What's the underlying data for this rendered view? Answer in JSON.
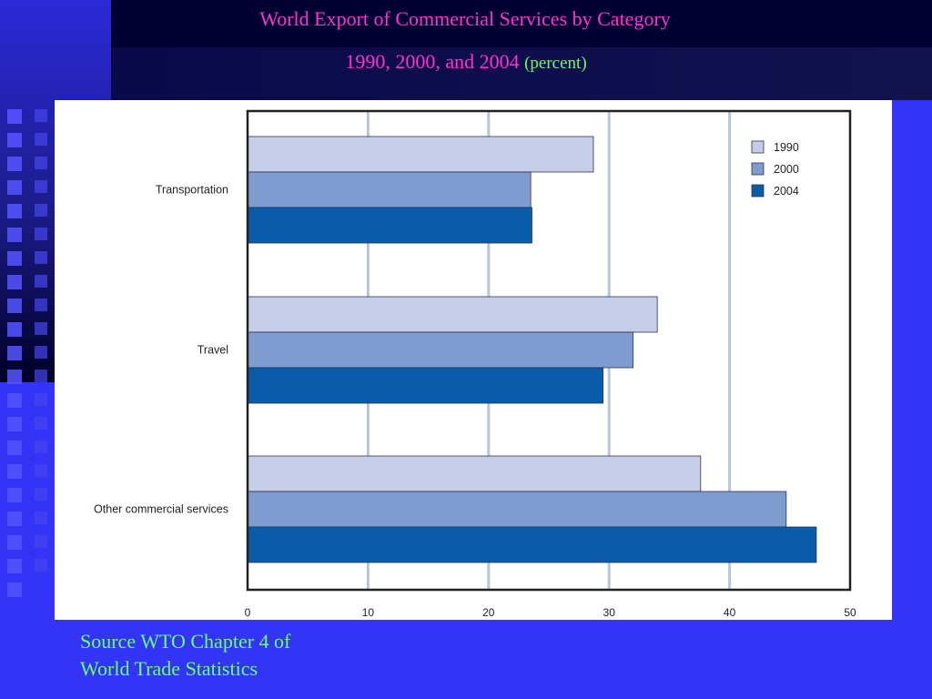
{
  "slide": {
    "title_line1": "World Export of Commercial Services by Category",
    "title_line2": "1990, 2000, and 2004",
    "title_unit": "(percent)",
    "source_line1": "Source WTO Chapter 4 of",
    "source_line2": "World Trade Statistics"
  },
  "colors": {
    "1990": "#c5cde9",
    "2000": "#7e9ccf",
    "2004": "#0a5ba8",
    "grid": "#b8c3dc"
  },
  "chart_data": {
    "type": "bar",
    "orientation": "horizontal",
    "categories": [
      "Transportation",
      "Travel",
      "Other commercial services"
    ],
    "series": [
      {
        "name": "1990",
        "values": [
          28.7,
          34.0,
          37.6
        ]
      },
      {
        "name": "2000",
        "values": [
          23.5,
          32.0,
          44.7
        ]
      },
      {
        "name": "2004",
        "values": [
          23.6,
          29.5,
          47.2
        ]
      }
    ],
    "xlim": [
      0,
      50
    ],
    "xticks": [
      "0",
      "10",
      "20",
      "30",
      "40",
      "50"
    ],
    "grid": true,
    "legend_position": "top-right"
  }
}
